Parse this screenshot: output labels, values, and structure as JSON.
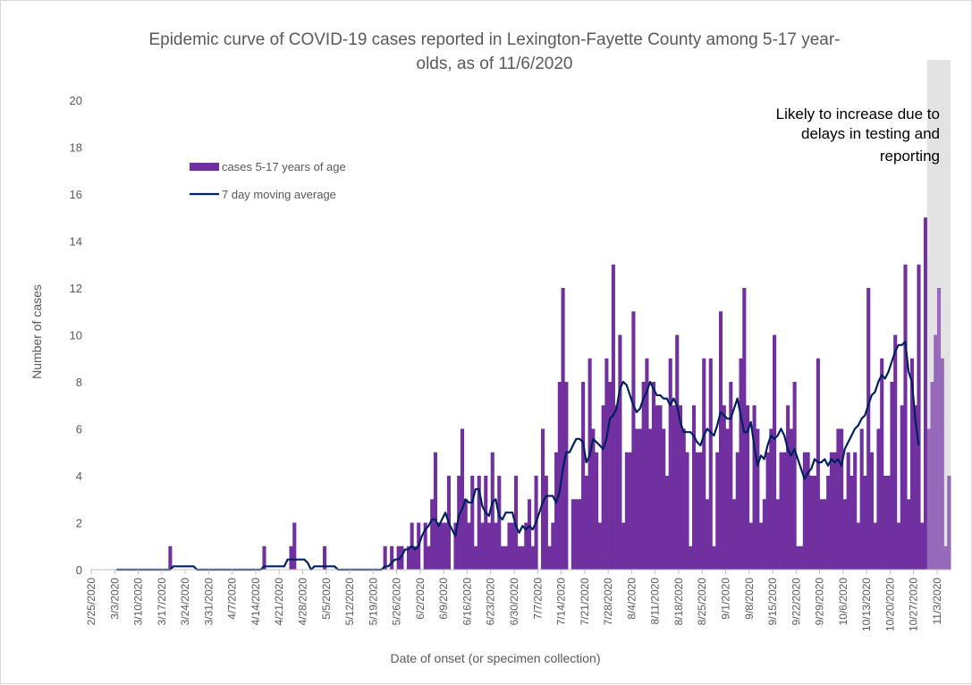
{
  "chart_data": {
    "type": "bar",
    "title_lines": [
      "Epidemic curve of COVID-19 cases reported in Lexington-Fayette County among 5-17 year-",
      "olds, as of 11/6/2020"
    ],
    "xlabel": "Date of onset (or specimen collection)",
    "ylabel": "Number of cases",
    "ylim": [
      0,
      20
    ],
    "y_ticks": [
      0,
      2,
      4,
      6,
      8,
      10,
      12,
      14,
      16,
      18,
      20
    ],
    "x_tick_labels": [
      "2/25/2020",
      "3/3/2020",
      "3/10/2020",
      "3/17/2020",
      "3/24/2020",
      "3/31/2020",
      "4/7/2020",
      "4/14/2020",
      "4/21/2020",
      "4/28/2020",
      "5/5/2020",
      "5/12/2020",
      "5/19/2020",
      "5/26/2020",
      "6/2/2020",
      "6/9/2020",
      "6/16/2020",
      "6/23/2020",
      "6/30/2020",
      "7/7/2020",
      "7/14/2020",
      "7/21/2020",
      "7/28/2020",
      "8/4/2020",
      "8/11/2020",
      "8/18/2020",
      "8/25/2020",
      "9/1/2020",
      "9/8/2020",
      "9/15/2020",
      "9/22/2020",
      "9/29/2020",
      "10/6/2020",
      "10/13/2020",
      "10/20/2020",
      "10/27/2020",
      "11/3/2020"
    ],
    "x_range": [
      "2/25/2020",
      "11/6/2020"
    ],
    "grid": false,
    "legend_position": "top-left",
    "series": [
      {
        "name": "cases 5-17 years of age",
        "kind": "bar",
        "color": "#7030a0",
        "start_date": "2/25/2020",
        "values": [
          0,
          0,
          0,
          0,
          0,
          0,
          0,
          0,
          0,
          0,
          0,
          0,
          0,
          0,
          0,
          0,
          0,
          0,
          0,
          0,
          0,
          0,
          0,
          1,
          0,
          0,
          0,
          0,
          0,
          0,
          0,
          0,
          0,
          0,
          0,
          0,
          0,
          0,
          0,
          0,
          0,
          0,
          0,
          0,
          0,
          0,
          0,
          0,
          0,
          0,
          0,
          1,
          0,
          0,
          0,
          0,
          0,
          0,
          0,
          1,
          2,
          0,
          0,
          0,
          0,
          0,
          0,
          0,
          0,
          1,
          0,
          0,
          0,
          0,
          0,
          0,
          0,
          0,
          0,
          0,
          0,
          0,
          0,
          0,
          0,
          0,
          0,
          1,
          0,
          1,
          0,
          1,
          1,
          0,
          1,
          2,
          1,
          2,
          0,
          2,
          1,
          3,
          5,
          2,
          2,
          2,
          4,
          0,
          2,
          4,
          6,
          3,
          2,
          4,
          1,
          4,
          2,
          4,
          2,
          5,
          2,
          4,
          1,
          1,
          2,
          2,
          4,
          1,
          1,
          2,
          3,
          1,
          4,
          0,
          6,
          4,
          1,
          2,
          5,
          8,
          12,
          8,
          0,
          3,
          3,
          3,
          8,
          4,
          9,
          6,
          5,
          2,
          7,
          9,
          8,
          13,
          7,
          10,
          2,
          5,
          5,
          11,
          6,
          6,
          8,
          9,
          6,
          8,
          7,
          7,
          6,
          4,
          9,
          7,
          10,
          7,
          6,
          5,
          1,
          7,
          5,
          5,
          9,
          3,
          9,
          1,
          5,
          11,
          7,
          6,
          8,
          3,
          5,
          9,
          12,
          7,
          2,
          7,
          6,
          2,
          3,
          5,
          6,
          10,
          3,
          5,
          5,
          7,
          6,
          8,
          1,
          1,
          5,
          5,
          4,
          4,
          9,
          3,
          3,
          4,
          5,
          5,
          6,
          6,
          3,
          5,
          4,
          5,
          2,
          6,
          4,
          12,
          5,
          2,
          6,
          9,
          4,
          4,
          8,
          10,
          2,
          7,
          13,
          3,
          9,
          7,
          13,
          2,
          15,
          6,
          8,
          10,
          12,
          9,
          1,
          4
        ]
      },
      {
        "name": "7 day moving average",
        "kind": "line",
        "color": "#002060",
        "start_date": "3/3/2020",
        "values": [
          0,
          0,
          0,
          0,
          0,
          0,
          0,
          0,
          0,
          0,
          0,
          0,
          0,
          0,
          0,
          0,
          0,
          0.14,
          0.14,
          0.14,
          0.14,
          0.14,
          0.14,
          0.14,
          0,
          0,
          0,
          0,
          0,
          0,
          0,
          0,
          0,
          0,
          0,
          0,
          0,
          0,
          0,
          0,
          0,
          0,
          0,
          0,
          0.14,
          0.14,
          0.14,
          0.14,
          0.14,
          0.14,
          0.14,
          0.43,
          0.43,
          0.43,
          0.43,
          0.43,
          0.43,
          0.29,
          0,
          0.14,
          0.14,
          0.14,
          0.14,
          0.14,
          0.14,
          0.14,
          0,
          0,
          0,
          0,
          0,
          0,
          0,
          0,
          0,
          0,
          0,
          0,
          0,
          0,
          0.14,
          0.14,
          0.29,
          0.43,
          0.43,
          0.57,
          0.86,
          0.86,
          1,
          0.86,
          1,
          1.43,
          1.71,
          1.86,
          2.14,
          2.14,
          1.86,
          2.14,
          2.43,
          2,
          1.71,
          1.43,
          2.29,
          2.57,
          3,
          2.86,
          2.86,
          3.43,
          3.43,
          2.71,
          2.43,
          2.29,
          2.86,
          3,
          2.29,
          2.14,
          2.43,
          2.43,
          2.43,
          1.86,
          1.57,
          1.86,
          1.71,
          1.86,
          1.71,
          2,
          2.43,
          2.86,
          3.14,
          3.14,
          3.14,
          2.86,
          3.29,
          4.29,
          5,
          5,
          5.29,
          5.57,
          5.57,
          5.43,
          4.57,
          4.86,
          5.57,
          5.43,
          5.29,
          5.14,
          5.57,
          6.43,
          6.57,
          6.86,
          7.71,
          8,
          7.86,
          7.43,
          7,
          6.71,
          6.86,
          7.29,
          7.57,
          8,
          7.71,
          7.43,
          7.43,
          7.29,
          7.29,
          7,
          7.29,
          7,
          6.29,
          5.86,
          5.86,
          5.86,
          5.71,
          5.43,
          5.29,
          5.71,
          6,
          5.86,
          5.71,
          6.14,
          6.71,
          6.57,
          6.43,
          6.43,
          6.86,
          7.29,
          6.57,
          5.86,
          5.86,
          6.29,
          5.29,
          4.43,
          4.86,
          4.71,
          5.29,
          5.71,
          5.57,
          5.71,
          6,
          5.71,
          5.14,
          4.86,
          5.14,
          4.71,
          4.29,
          3.86,
          4.14,
          4.29,
          4.71,
          4.57,
          4.57,
          4.71,
          4.43,
          4.71,
          4.57,
          4.71,
          4.43,
          5.14,
          5.43,
          5.71,
          6,
          6.14,
          6.43,
          6.57,
          7,
          7.43,
          7.57,
          8,
          8.29,
          8.14,
          8.43,
          8.86,
          9.29,
          9.57,
          9.57,
          9.71,
          8.43,
          8,
          6.43,
          5.29
        ]
      }
    ],
    "shaded_region": {
      "start_date": "10/31/2020",
      "end_date": "11/6/2020",
      "color": "#d9d9d9",
      "annotation_lines": [
        "Likely to increase due to",
        "delays in testing and",
        "reporting"
      ]
    }
  }
}
